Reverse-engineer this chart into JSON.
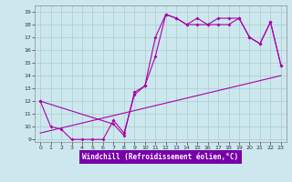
{
  "xlabel": "Windchill (Refroidissement éolien,°C)",
  "bg_color": "#cce8ee",
  "line_color": "#aa00aa",
  "grid_color": "#aacccc",
  "xlabel_bg": "#7700aa",
  "xlim": [
    -0.5,
    23.5
  ],
  "ylim": [
    8.8,
    19.5
  ],
  "xticks": [
    0,
    1,
    2,
    3,
    4,
    5,
    6,
    7,
    8,
    9,
    10,
    11,
    12,
    13,
    14,
    15,
    16,
    17,
    18,
    19,
    20,
    21,
    22,
    23
  ],
  "yticks": [
    9,
    10,
    11,
    12,
    13,
    14,
    15,
    16,
    17,
    18,
    19
  ],
  "line1_x": [
    0,
    1,
    2,
    3,
    4,
    5,
    6,
    7,
    8,
    9,
    10,
    11,
    12,
    13,
    14,
    15,
    16,
    17,
    18,
    19,
    20,
    21,
    22,
    23
  ],
  "line1_y": [
    12,
    10,
    9.8,
    9,
    9,
    9,
    9,
    10.5,
    9.5,
    12.5,
    13.2,
    17.0,
    18.8,
    18.5,
    18.0,
    18.0,
    18.0,
    18.0,
    18.0,
    18.5,
    17.0,
    16.5,
    18.2,
    14.8
  ],
  "line2_x": [
    0,
    7,
    8,
    9,
    10,
    11,
    12,
    13,
    14,
    15,
    16,
    17,
    18,
    19,
    20,
    21,
    22,
    23
  ],
  "line2_y": [
    12,
    10.2,
    9.3,
    12.7,
    13.2,
    15.5,
    18.8,
    18.5,
    18.0,
    18.5,
    18.0,
    18.5,
    18.5,
    18.5,
    17.0,
    16.5,
    18.2,
    14.8
  ],
  "line3_x": [
    0,
    23
  ],
  "line3_y": [
    9.5,
    14.0
  ]
}
